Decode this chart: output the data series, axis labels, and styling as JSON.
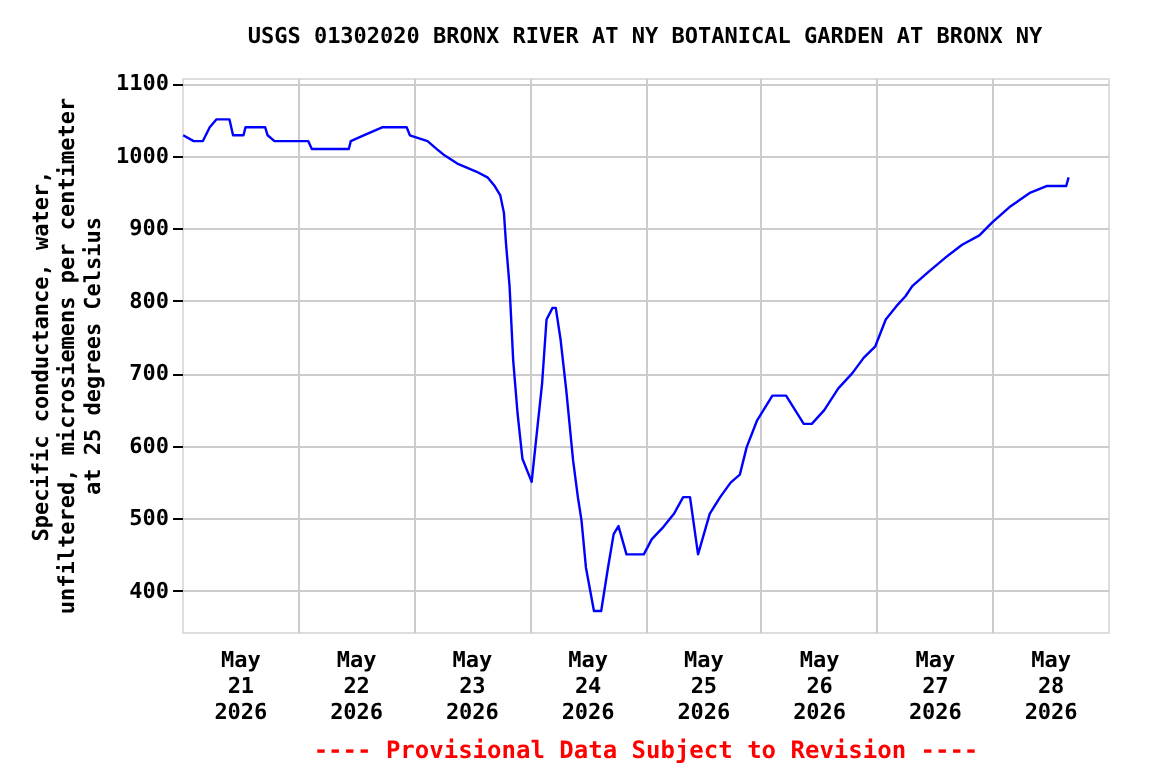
{
  "chart_data": {
    "type": "line",
    "title": "USGS 01302020 BRONX RIVER AT NY BOTANICAL GARDEN AT BRONX NY",
    "ylabel": "Specific conductance, water,\nunfiltered, microsiemens per centimeter\nat 25 degrees Celsius",
    "annotations": [
      "---- Provisional Data Subject to Revision ----"
    ],
    "x": [
      "2026-05-21T00:15",
      "2026-05-21T02:25",
      "2026-05-21T04:20",
      "2026-05-21T05:45",
      "2026-05-21T07:10",
      "2026-05-21T09:50",
      "2026-05-21T10:35",
      "2026-05-21T12:45",
      "2026-05-21T13:10",
      "2026-05-21T17:15",
      "2026-05-21T17:45",
      "2026-05-21T19:10",
      "2026-05-22T02:10",
      "2026-05-22T02:55",
      "2026-05-22T10:35",
      "2026-05-22T11:00",
      "2026-05-22T13:40",
      "2026-05-22T17:30",
      "2026-05-22T22:35",
      "2026-05-22T23:15",
      "2026-05-23T02:55",
      "2026-05-23T04:50",
      "2026-05-23T06:30",
      "2026-05-23T09:05",
      "2026-05-23T13:00",
      "2026-05-23T15:20",
      "2026-05-23T16:50",
      "2026-05-23T18:00",
      "2026-05-23T18:45",
      "2026-05-23T19:10",
      "2026-05-23T19:55",
      "2026-05-23T20:40",
      "2026-05-23T21:35",
      "2026-05-23T22:35",
      "2026-05-24T00:30",
      "2026-05-24T01:25",
      "2026-05-24T02:40",
      "2026-05-24T03:35",
      "2026-05-24T04:50",
      "2026-05-24T05:30",
      "2026-05-24T06:30",
      "2026-05-24T07:40",
      "2026-05-24T09:05",
      "2026-05-24T10:05",
      "2026-05-24T10:50",
      "2026-05-24T11:45",
      "2026-05-24T13:25",
      "2026-05-24T14:55",
      "2026-05-24T16:20",
      "2026-05-24T17:30",
      "2026-05-24T18:30",
      "2026-05-24T20:10",
      "2026-05-24T23:45",
      "2026-05-25T01:25",
      "2026-05-25T03:50",
      "2026-05-25T06:00",
      "2026-05-25T07:55",
      "2026-05-25T09:20",
      "2026-05-25T11:00",
      "2026-05-25T13:25",
      "2026-05-25T15:35",
      "2026-05-25T17:45",
      "2026-05-25T19:40",
      "2026-05-25T21:05",
      "2026-05-25T23:15",
      "2026-05-26T02:25",
      "2026-05-26T05:15",
      "2026-05-26T08:55",
      "2026-05-26T10:35",
      "2026-05-26T13:10",
      "2026-05-26T16:05",
      "2026-05-26T19:00",
      "2026-05-26T21:20",
      "2026-05-26T23:45",
      "2026-05-27T01:55",
      "2026-05-27T04:05",
      "2026-05-27T06:00",
      "2026-05-27T07:25",
      "2026-05-27T10:50",
      "2026-05-27T14:25",
      "2026-05-27T17:45",
      "2026-05-27T21:20",
      "2026-05-28T00:00",
      "2026-05-28T03:35",
      "2026-05-28T07:55",
      "2026-05-28T11:15",
      "2026-05-28T15:20",
      "2026-05-28T15:50"
    ],
    "series": [
      {
        "color": "#0000ff",
        "values": [
          1028,
          1020,
          1020,
          1039,
          1050,
          1050,
          1028,
          1028,
          1039,
          1039,
          1028,
          1020,
          1020,
          1009,
          1009,
          1020,
          1028,
          1039,
          1039,
          1028,
          1020,
          1009,
          1000,
          989,
          978,
          970,
          958,
          945,
          921,
          880,
          820,
          718,
          644,
          582,
          550,
          608,
          686,
          774,
          790,
          790,
          746,
          677,
          580,
          529,
          497,
          432,
          372,
          372,
          432,
          478,
          489,
          450,
          450,
          471,
          488,
          506,
          529,
          529,
          450,
          506,
          529,
          549,
          560,
          598,
          635,
          669,
          669,
          630,
          630,
          649,
          679,
          700,
          721,
          737,
          774,
          792,
          806,
          820,
          840,
          860,
          877,
          890,
          908,
          929,
          949,
          958,
          958,
          970
        ]
      }
    ],
    "xlim": [
      "2026-05-21",
      "2026-05-29"
    ],
    "xticks": [
      {
        "value": "2026-05-21T12:00",
        "label": "May 21 2026"
      },
      {
        "value": "2026-05-22T12:00",
        "label": "May 22 2026"
      },
      {
        "value": "2026-05-23T12:00",
        "label": "May 23 2026"
      },
      {
        "value": "2026-05-24T12:00",
        "label": "May 24 2026"
      },
      {
        "value": "2026-05-25T12:00",
        "label": "May 25 2026"
      },
      {
        "value": "2026-05-26T12:00",
        "label": "May 26 2026"
      },
      {
        "value": "2026-05-27T12:00",
        "label": "May 27 2026"
      },
      {
        "value": "2026-05-28T12:00",
        "label": "May 28 2026"
      },
      {
        "value": "2026-05-22",
        "label": null
      },
      {
        "value": "2026-05-23",
        "label": null
      },
      {
        "value": "2026-05-24",
        "label": null
      },
      {
        "value": "2026-05-25",
        "label": null
      },
      {
        "value": "2026-05-26",
        "label": null
      },
      {
        "value": "2026-05-27",
        "label": null
      },
      {
        "value": "2026-05-28",
        "label": null
      }
    ],
    "ylim": [
      343,
      1107
    ],
    "yticks": [
      400,
      500,
      600,
      700,
      800,
      900,
      1000,
      1100
    ],
    "grid": true,
    "legend": false
  }
}
